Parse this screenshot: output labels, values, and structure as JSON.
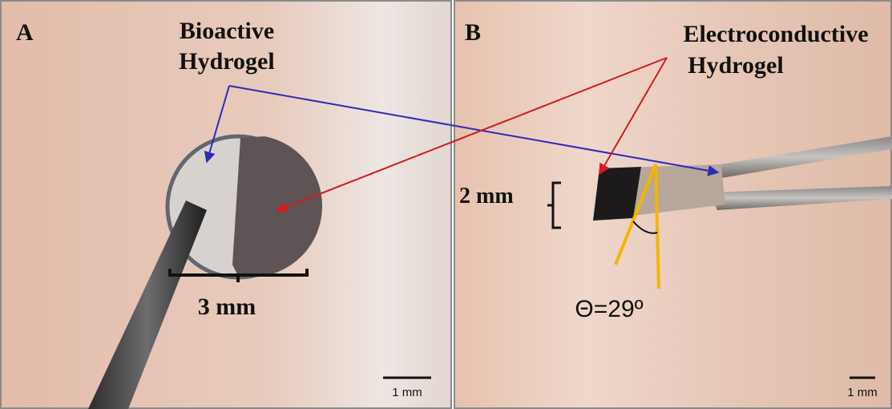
{
  "panels": [
    {
      "label": "A",
      "title_lines": [
        "Bioactive",
        "Hydrogel"
      ],
      "dimension": "3 mm",
      "scale_bar": "1 mm"
    },
    {
      "label": "B",
      "title_lines": [
        "Electroconductive",
        "Hydrogel"
      ],
      "dimension": "2 mm",
      "angle": "Θ=29º",
      "scale_bar": "1 mm"
    }
  ]
}
